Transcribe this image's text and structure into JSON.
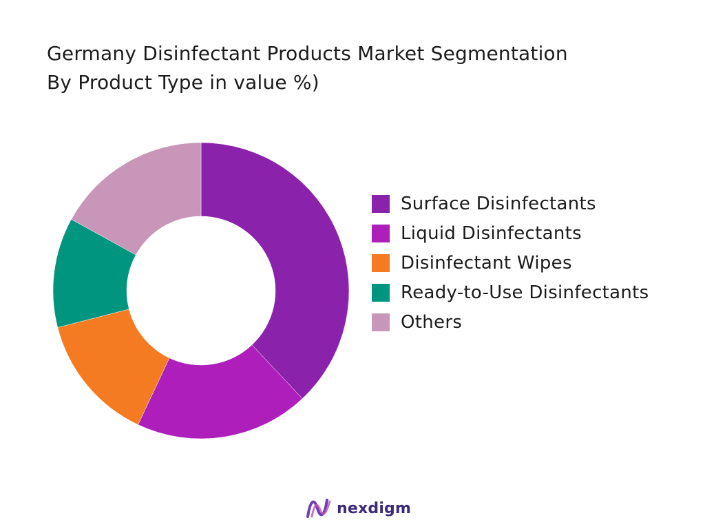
{
  "chart_data": {
    "type": "pie",
    "title_line1": "Germany Disinfectant Products Market Segmentation",
    "title_line2": "By Product Type in value %)",
    "categories": [
      "Surface Disinfectants",
      "Liquid Disinfectants",
      "Disinfectant Wipes",
      "Ready-to-Use Disinfectants",
      "Others"
    ],
    "values": [
      38,
      19,
      14,
      12,
      17
    ],
    "colors": [
      "#8b22ab",
      "#ae1eba",
      "#f47b22",
      "#00957f",
      "#c896b8"
    ],
    "legend_position": "right",
    "style": "donut"
  },
  "logo": {
    "text": "nexdigm"
  }
}
